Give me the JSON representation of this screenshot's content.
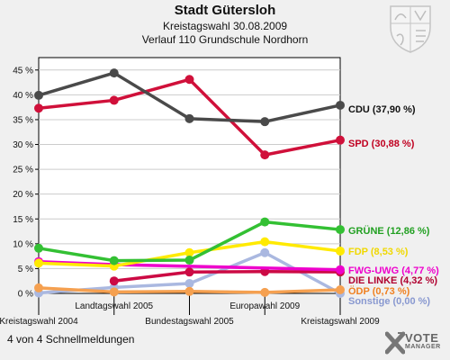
{
  "header": {
    "title": "Stadt Gütersloh",
    "subtitle1": "Kreistagswahl 30.08.2009",
    "subtitle2": "Verlauf 110 Grundschule Nordhorn"
  },
  "footer": {
    "text": "4 von 4 Schnellmeldungen"
  },
  "logo": {
    "line1": "VOTE",
    "line2": "MANAGER"
  },
  "chart_data": {
    "type": "line",
    "categories": [
      "Kreistagswahl 2004",
      "Landtagswahl 2005",
      "Bundestagswahl 2005",
      "Europawahl 2009",
      "Kreistagswahl 2009"
    ],
    "ylim": [
      0,
      47.5
    ],
    "yticks": [
      0,
      5,
      10,
      15,
      20,
      25,
      30,
      35,
      40,
      45
    ],
    "ytick_labels": [
      "0 %",
      "5 %",
      "10 %",
      "15 %",
      "20 %",
      "25 %",
      "30 %",
      "35 %",
      "40 %",
      "45 %"
    ],
    "grid": true,
    "legend": "right",
    "series": [
      {
        "name": "CDU",
        "label": "CDU (37,90 %)",
        "color": "#4a4a4a",
        "label_color": "#111111",
        "values": [
          39.9,
          44.4,
          35.2,
          34.6,
          37.9
        ]
      },
      {
        "name": "SPD",
        "label": "SPD (30,88 %)",
        "color": "#d0103a",
        "label_color": "#c00020",
        "values": [
          37.3,
          38.9,
          43.1,
          27.9,
          30.88
        ]
      },
      {
        "name": "GRÜNE",
        "label": "GRÜNE (12,86 %)",
        "color": "#33c033",
        "label_color": "#22a022",
        "values": [
          9.1,
          6.6,
          6.7,
          14.4,
          12.86
        ]
      },
      {
        "name": "FDP",
        "label": "FDP (8,53 %)",
        "color": "#ffea00",
        "label_color": "#f0d800",
        "values": [
          6.1,
          5.5,
          8.2,
          10.4,
          8.53
        ]
      },
      {
        "name": "FWG-UWG",
        "label": "FWG-UWG (4,77 %)",
        "color": "#ee00cc",
        "label_color": "#ee00cc",
        "values": [
          6.4,
          5.8,
          null,
          null,
          4.77
        ]
      },
      {
        "name": "DIE LINKE",
        "label": "DIE LINKE (4,32 %)",
        "color": "#cc0a44",
        "label_color": "#b00030",
        "values": [
          null,
          2.5,
          4.3,
          4.4,
          4.32
        ]
      },
      {
        "name": "ÖDP",
        "label": "ÖDP (0,73 %)",
        "color": "#f5a050",
        "label_color": "#f08020",
        "values": [
          1.1,
          0.3,
          0.4,
          0.2,
          0.73
        ]
      },
      {
        "name": "Sonstige",
        "label": "Sonstige (0,00 %)",
        "color": "#aab8e0",
        "label_color": "#8898d0",
        "values": [
          0.1,
          1.2,
          2.0,
          8.2,
          0.0
        ]
      }
    ]
  }
}
